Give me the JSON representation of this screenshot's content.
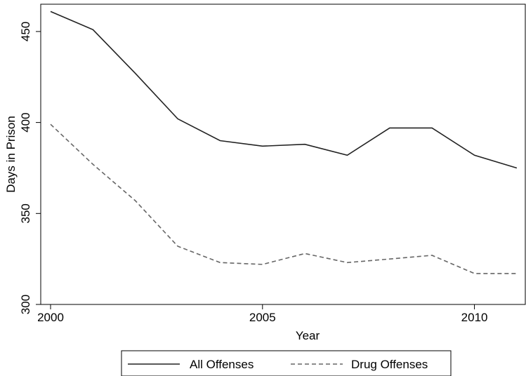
{
  "chart_data": {
    "type": "line",
    "xlabel": "Year",
    "ylabel": "Days in Prison",
    "xlim": [
      2000,
      2011.2
    ],
    "ylim": [
      300,
      465
    ],
    "xticks": [
      2000,
      2005,
      2010
    ],
    "yticks": [
      300,
      350,
      400,
      450
    ],
    "x": [
      2000,
      2001,
      2002,
      2003,
      2004,
      2005,
      2006,
      2007,
      2008,
      2009,
      2010,
      2011
    ],
    "series": [
      {
        "name": "All Offenses",
        "color": "#222222",
        "dash": "solid",
        "values": [
          461,
          451,
          427,
          402,
          390,
          387,
          388,
          382,
          397,
          397,
          382,
          375
        ]
      },
      {
        "name": "Drug Offenses",
        "color": "#666666",
        "dash": "dashed",
        "values": [
          399,
          377,
          357,
          332,
          323,
          322,
          328,
          323,
          325,
          327,
          317,
          317
        ]
      }
    ],
    "legend_position": "bottom",
    "grid": false
  }
}
